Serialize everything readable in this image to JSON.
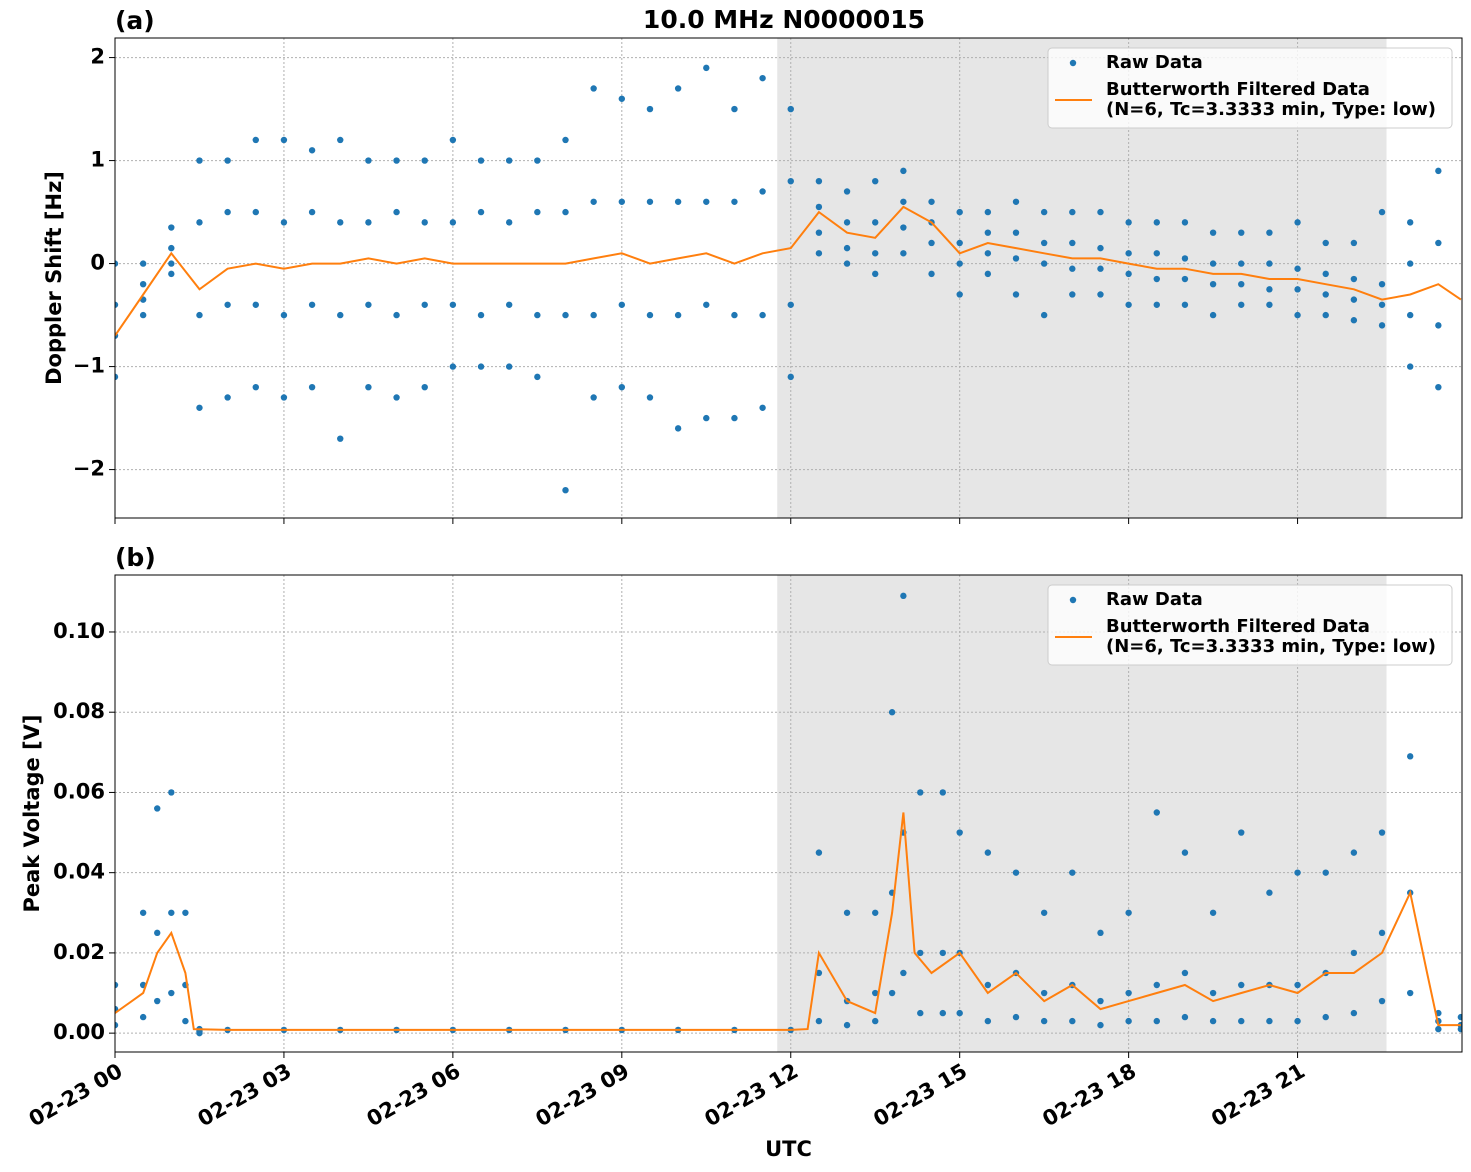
{
  "chart_data": [
    {
      "type": "scatter",
      "title": "10.0 MHz N0000015",
      "panel_label": "(a)",
      "ylabel": "Doppler Shift [Hz]",
      "xlim": [
        0,
        23.92
      ],
      "ylim": [
        -2.47,
        2.19
      ],
      "xticks": [
        0,
        3,
        6,
        9,
        12,
        15,
        18,
        21
      ],
      "yticks": [
        {
          "value": -2,
          "label": "−2"
        },
        {
          "value": -1,
          "label": "−1"
        },
        0,
        1,
        2
      ],
      "grid": true,
      "legend": "upper right",
      "shaded_span": [
        11.76,
        22.58
      ],
      "series": [
        {
          "name": [
            "Raw Data"
          ],
          "color": "#1f77b4",
          "kind": "points",
          "x": [
            0,
            0,
            0,
            0,
            0.5,
            0.5,
            0.5,
            0.5,
            1,
            1,
            1,
            1,
            1.5,
            1.5,
            1.5,
            1.5,
            2,
            2,
            2,
            2,
            2.5,
            2.5,
            2.5,
            2.5,
            3,
            3,
            3,
            3,
            3.5,
            3.5,
            3.5,
            3.5,
            4,
            4,
            4,
            4,
            4.5,
            4.5,
            4.5,
            4.5,
            5,
            5,
            5,
            5,
            5.5,
            5.5,
            5.5,
            5.5,
            6,
            6,
            6,
            6,
            6.5,
            6.5,
            6.5,
            6.5,
            7,
            7,
            7,
            7,
            7.5,
            7.5,
            7.5,
            7.5,
            8,
            8,
            8,
            8,
            8.5,
            8.5,
            8.5,
            8.5,
            9,
            9,
            9,
            9,
            9.5,
            9.5,
            9.5,
            9.5,
            10,
            10,
            10,
            10,
            10.5,
            10.5,
            10.5,
            10.5,
            11,
            11,
            11,
            11,
            11.5,
            11.5,
            11.5,
            11.5,
            12,
            12,
            12,
            12,
            12.5,
            12.5,
            12.5,
            12.5,
            13,
            13,
            13,
            13,
            13.5,
            13.5,
            13.5,
            13.5,
            14,
            14,
            14,
            14,
            14.5,
            14.5,
            14.5,
            14.5,
            15,
            15,
            15,
            15,
            15.5,
            15.5,
            15.5,
            15.5,
            16,
            16,
            16,
            16,
            16.5,
            16.5,
            16.5,
            16.5,
            17,
            17,
            17,
            17,
            17.5,
            17.5,
            17.5,
            17.5,
            18,
            18,
            18,
            18,
            18.5,
            18.5,
            18.5,
            18.5,
            19,
            19,
            19,
            19,
            19.5,
            19.5,
            19.5,
            19.5,
            20,
            20,
            20,
            20,
            20.5,
            20.5,
            20.5,
            20.5,
            21,
            21,
            21,
            21,
            21.5,
            21.5,
            21.5,
            21.5,
            22,
            22,
            22,
            22,
            22.5,
            22.5,
            22.5,
            22.5,
            23,
            23,
            23,
            23,
            23.5,
            23.5,
            23.5,
            23.5
          ],
          "values": [
            0.0,
            -0.4,
            -0.7,
            -1.1,
            0.0,
            -0.2,
            -0.35,
            -0.5,
            0.35,
            0.15,
            0.0,
            -0.1,
            1.0,
            0.4,
            -0.5,
            -1.4,
            1.0,
            0.5,
            -0.4,
            -1.3,
            1.2,
            0.5,
            -0.4,
            -1.2,
            1.2,
            0.4,
            -0.5,
            -1.3,
            1.1,
            0.5,
            -0.4,
            -1.2,
            1.2,
            0.4,
            -0.5,
            -1.7,
            1.0,
            0.4,
            -0.4,
            -1.2,
            1.0,
            0.5,
            -0.5,
            -1.3,
            1.0,
            0.4,
            -0.4,
            -1.2,
            1.2,
            0.4,
            -0.4,
            -1.0,
            1.0,
            0.5,
            -0.5,
            -1.0,
            1.0,
            0.4,
            -0.4,
            -1.0,
            1.0,
            0.5,
            -0.5,
            -1.1,
            1.2,
            0.5,
            -0.5,
            -2.2,
            1.7,
            0.6,
            -0.5,
            -1.3,
            1.6,
            0.6,
            -0.4,
            -1.2,
            1.5,
            0.6,
            -0.5,
            -1.3,
            1.7,
            0.6,
            -0.5,
            -1.6,
            1.9,
            0.6,
            -0.4,
            -1.5,
            1.5,
            0.6,
            -0.5,
            -1.5,
            1.8,
            0.7,
            -0.5,
            -1.4,
            1.5,
            0.8,
            -0.4,
            -1.1,
            0.8,
            0.55,
            0.3,
            0.1,
            0.7,
            0.4,
            0.15,
            0.0,
            0.8,
            0.4,
            0.1,
            -0.1,
            0.9,
            0.6,
            0.35,
            0.1,
            0.6,
            0.4,
            0.2,
            -0.1,
            0.5,
            0.2,
            0.0,
            -0.3,
            0.5,
            0.3,
            0.1,
            -0.1,
            0.6,
            0.3,
            0.05,
            -0.3,
            0.5,
            0.2,
            0.0,
            -0.5,
            0.5,
            0.2,
            -0.05,
            -0.3,
            0.5,
            0.15,
            -0.05,
            -0.3,
            0.4,
            0.1,
            -0.1,
            -0.4,
            0.4,
            0.1,
            -0.15,
            -0.4,
            0.4,
            0.05,
            -0.15,
            -0.4,
            0.3,
            0.0,
            -0.2,
            -0.5,
            0.3,
            0.0,
            -0.2,
            -0.4,
            0.3,
            0.0,
            -0.25,
            -0.4,
            0.4,
            -0.05,
            -0.25,
            -0.5,
            0.2,
            -0.1,
            -0.3,
            -0.5,
            0.2,
            -0.15,
            -0.35,
            -0.55,
            0.5,
            -0.2,
            -0.4,
            -0.6,
            0.4,
            0.0,
            -0.5,
            -1.0,
            0.9,
            0.2,
            -0.6,
            -1.2
          ]
        },
        {
          "name": [
            "Butterworth Filtered Data",
            "(N=6, Tc=3.3333 min, Type: low)"
          ],
          "color": "#ff7f0e",
          "kind": "line",
          "x": [
            0,
            0.5,
            1,
            1.5,
            2,
            2.5,
            3,
            3.5,
            4,
            4.5,
            5,
            5.5,
            6,
            6.5,
            7,
            7.5,
            8,
            8.5,
            9,
            9.5,
            10,
            10.5,
            11,
            11.5,
            12,
            12.5,
            13,
            13.5,
            14,
            14.5,
            15,
            15.5,
            16,
            16.5,
            17,
            17.5,
            18,
            18.5,
            19,
            19.5,
            20,
            20.5,
            21,
            21.5,
            22,
            22.5,
            23,
            23.5,
            23.9
          ],
          "values": [
            -0.7,
            -0.3,
            0.1,
            -0.25,
            -0.05,
            0.0,
            -0.05,
            0.0,
            0.0,
            0.05,
            0.0,
            0.05,
            0.0,
            0.0,
            0.0,
            0.0,
            0.0,
            0.05,
            0.1,
            0.0,
            0.05,
            0.1,
            0.0,
            0.1,
            0.15,
            0.5,
            0.3,
            0.25,
            0.55,
            0.4,
            0.1,
            0.2,
            0.15,
            0.1,
            0.05,
            0.05,
            0.0,
            -0.05,
            -0.05,
            -0.1,
            -0.1,
            -0.15,
            -0.15,
            -0.2,
            -0.25,
            -0.35,
            -0.3,
            -0.2,
            -0.35
          ]
        }
      ]
    },
    {
      "type": "scatter",
      "panel_label": "(b)",
      "ylabel": "Peak Voltage [V]",
      "xlabel": "UTC",
      "xlim": [
        0,
        23.92
      ],
      "ylim": [
        -0.0047,
        0.1142
      ],
      "xticks": [
        {
          "value": 0,
          "label": "02-23 00"
        },
        {
          "value": 3,
          "label": "02-23 03"
        },
        {
          "value": 6,
          "label": "02-23 06"
        },
        {
          "value": 9,
          "label": "02-23 09"
        },
        {
          "value": 12,
          "label": "02-23 12"
        },
        {
          "value": 15,
          "label": "02-23 15"
        },
        {
          "value": 18,
          "label": "02-23 18"
        },
        {
          "value": 21,
          "label": "02-23 21"
        }
      ],
      "yticks": [
        {
          "value": 0,
          "label": "0.00"
        },
        {
          "value": 0.02,
          "label": "0.02"
        },
        {
          "value": 0.04,
          "label": "0.04"
        },
        {
          "value": 0.06,
          "label": "0.06"
        },
        {
          "value": 0.08,
          "label": "0.08"
        },
        {
          "value": 0.1,
          "label": "0.10"
        }
      ],
      "grid": true,
      "legend": "upper right",
      "shaded_span": [
        11.76,
        22.58
      ],
      "series": [
        {
          "name": [
            "Raw Data"
          ],
          "color": "#1f77b4",
          "kind": "points",
          "x": [
            0,
            0,
            0,
            0.5,
            0.5,
            0.5,
            0.75,
            0.75,
            0.75,
            1,
            1,
            1,
            1.25,
            1.25,
            1.25,
            1.5,
            1.5,
            1.5,
            2,
            3,
            4,
            5,
            6,
            7,
            8,
            9,
            10,
            11,
            12,
            12.5,
            12.5,
            12.5,
            13,
            13,
            13,
            13.5,
            13.5,
            13.5,
            13.8,
            13.8,
            13.8,
            14,
            14,
            14,
            14.3,
            14.3,
            14.3,
            14.7,
            14.7,
            14.7,
            15,
            15,
            15,
            15.5,
            15.5,
            15.5,
            16,
            16,
            16,
            16.5,
            16.5,
            16.5,
            17,
            17,
            17,
            17.5,
            17.5,
            17.5,
            18,
            18,
            18,
            18.5,
            18.5,
            18.5,
            19,
            19,
            19,
            19.5,
            19.5,
            19.5,
            20,
            20,
            20,
            20.5,
            20.5,
            20.5,
            21,
            21,
            21,
            21.5,
            21.5,
            21.5,
            22,
            22,
            22,
            22.5,
            22.5,
            22.5,
            23,
            23,
            23,
            23.5,
            23.5,
            23.5,
            23.9,
            23.9,
            23.9
          ],
          "values": [
            0.012,
            0.006,
            0.002,
            0.03,
            0.012,
            0.004,
            0.056,
            0.025,
            0.008,
            0.06,
            0.03,
            0.01,
            0.03,
            0.012,
            0.003,
            0.001,
            0.0005,
            0,
            0.0008,
            0.0008,
            0.0008,
            0.0008,
            0.0008,
            0.0008,
            0.0008,
            0.0008,
            0.0008,
            0.0008,
            0.0008,
            0.045,
            0.015,
            0.003,
            0.03,
            0.008,
            0.002,
            0.03,
            0.01,
            0.003,
            0.08,
            0.035,
            0.01,
            0.109,
            0.05,
            0.015,
            0.06,
            0.02,
            0.005,
            0.06,
            0.02,
            0.005,
            0.05,
            0.02,
            0.005,
            0.045,
            0.012,
            0.003,
            0.04,
            0.015,
            0.004,
            0.03,
            0.01,
            0.003,
            0.04,
            0.012,
            0.003,
            0.025,
            0.008,
            0.002,
            0.03,
            0.01,
            0.003,
            0.055,
            0.012,
            0.003,
            0.045,
            0.015,
            0.004,
            0.03,
            0.01,
            0.003,
            0.05,
            0.012,
            0.003,
            0.035,
            0.012,
            0.003,
            0.04,
            0.012,
            0.003,
            0.04,
            0.015,
            0.004,
            0.045,
            0.02,
            0.005,
            0.05,
            0.025,
            0.008,
            0.069,
            0.035,
            0.01,
            0.005,
            0.003,
            0.001,
            0.004,
            0.002,
            0.001
          ]
        },
        {
          "name": [
            "Butterworth Filtered Data",
            "(N=6, Tc=3.3333 min, Type: low)"
          ],
          "color": "#ff7f0e",
          "kind": "line",
          "x": [
            0,
            0.5,
            0.75,
            1,
            1.25,
            1.4,
            2,
            3,
            4,
            5,
            6,
            7,
            8,
            9,
            10,
            11,
            12,
            12.3,
            12.5,
            13,
            13.5,
            13.8,
            14,
            14.2,
            14.5,
            15,
            15.5,
            16,
            16.5,
            17,
            17.5,
            18,
            18.5,
            19,
            19.5,
            20,
            20.5,
            21,
            21.5,
            22,
            22.5,
            23,
            23.3,
            23.5,
            23.9
          ],
          "values": [
            0.005,
            0.01,
            0.02,
            0.025,
            0.015,
            0.001,
            0.0008,
            0.0008,
            0.0008,
            0.0008,
            0.0008,
            0.0008,
            0.0008,
            0.0008,
            0.0008,
            0.0008,
            0.0008,
            0.001,
            0.02,
            0.008,
            0.005,
            0.03,
            0.055,
            0.02,
            0.015,
            0.02,
            0.01,
            0.015,
            0.008,
            0.012,
            0.006,
            0.008,
            0.01,
            0.012,
            0.008,
            0.01,
            0.012,
            0.01,
            0.015,
            0.015,
            0.02,
            0.035,
            0.015,
            0.002,
            0.002
          ]
        }
      ]
    }
  ]
}
